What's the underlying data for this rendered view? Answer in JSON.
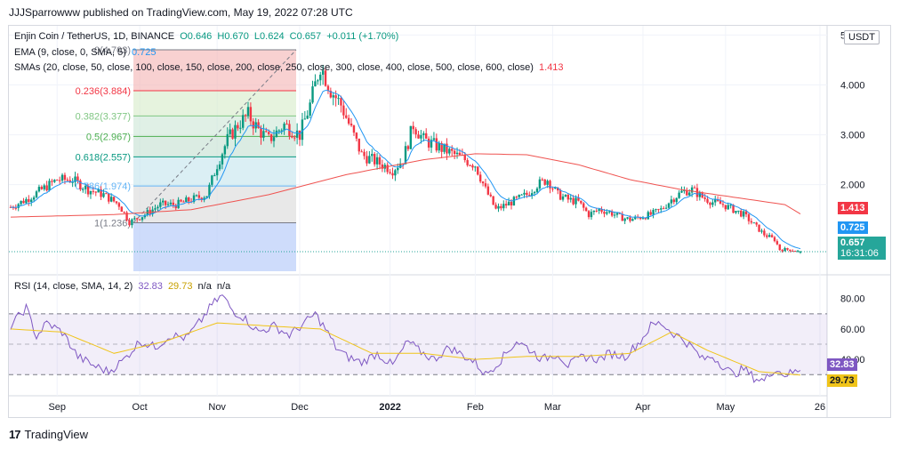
{
  "header": {
    "published": "JJJSparrowww published on TradingView.com, May 19, 2022 07:28 UTC"
  },
  "legend": {
    "symbol": "Enjin Coin / TetherUS, 1D, BINANCE",
    "o": "O0.646",
    "h": "H0.670",
    "l": "L0.624",
    "c": "C0.657",
    "chg": "+0.011 (+1.70%)",
    "ema_label": "EMA (9, close, 0, SMA, 5)",
    "ema_value": "0.725",
    "sma_label": "SMAs (20, close, 50, close, 100, close, 150, close, 200, close, 250, close, 300, close, 400, close, 500, close, 600, close)",
    "sma_value": "1.413",
    "rsi_label": "RSI (14, close, SMA, 14, 2)",
    "rsi_value": "32.83",
    "rsi_sma_value": "29.73",
    "na1": "n/a",
    "na2": "n/a"
  },
  "currency": "USDT",
  "price_tags": {
    "sma": "1.413",
    "ema": "0.725",
    "last": "0.657",
    "countdown": "16:31:06",
    "rsi": "32.83",
    "rsi_sma": "29.73"
  },
  "colors": {
    "up": "#089981",
    "down": "#f23645",
    "ema": "#2196f3",
    "sma": "#ef5350",
    "rsi": "#7e57c2",
    "rsi_sma": "#f0c419"
  },
  "fib_labels": [
    "0(4.703)",
    "0.236(3.884)",
    "0.382(3.377)",
    "0.5(2.967)",
    "0.618(2.557)",
    "0.786(1.974)",
    "1(1.236)"
  ],
  "chart_data": [
    {
      "type": "candlestick",
      "y_axis_ticks": [
        "5",
        "4.000",
        "3.000",
        "2.000"
      ],
      "x_axis_ticks": [
        "Sep",
        "Oct",
        "Nov",
        "Dec",
        "2022",
        "Feb",
        "Mar",
        "Apr",
        "May",
        "26"
      ],
      "series": [
        {
          "name": "EMA (9, close, 0, SMA, 5)",
          "last": 0.725
        },
        {
          "name": "SMAs (20, close, 50, close, 100, close, 150, close, 200, close, 250, close, 300, close, 400, close, 500, close, 600, close)",
          "last": 1.413
        }
      ],
      "fib_levels": [
        {
          "ratio": 0,
          "price": 4.703
        },
        {
          "ratio": 0.236,
          "price": 3.884
        },
        {
          "ratio": 0.382,
          "price": 3.377
        },
        {
          "ratio": 0.5,
          "price": 2.967
        },
        {
          "ratio": 0.618,
          "price": 2.557
        },
        {
          "ratio": 0.786,
          "price": 1.974
        },
        {
          "ratio": 1,
          "price": 1.236
        }
      ],
      "last": {
        "open": 0.646,
        "high": 0.67,
        "low": 0.624,
        "close": 0.657
      },
      "path": [
        [
          0,
          1.55
        ],
        [
          6,
          1.7
        ],
        [
          12,
          1.9
        ],
        [
          18,
          2.1
        ],
        [
          24,
          2.1
        ],
        [
          30,
          1.9
        ],
        [
          36,
          1.8
        ],
        [
          42,
          1.6
        ],
        [
          46,
          1.25
        ],
        [
          52,
          1.4
        ],
        [
          58,
          1.6
        ],
        [
          64,
          1.6
        ],
        [
          70,
          1.7
        ],
        [
          76,
          1.8
        ],
        [
          80,
          2.4
        ],
        [
          84,
          2.9
        ],
        [
          88,
          3.2
        ],
        [
          92,
          3.4
        ],
        [
          96,
          3.1
        ],
        [
          100,
          2.9
        ],
        [
          106,
          3.2
        ],
        [
          112,
          3.0
        ],
        [
          116,
          3.6
        ],
        [
          120,
          4.4
        ],
        [
          124,
          3.9
        ],
        [
          128,
          3.6
        ],
        [
          132,
          3.1
        ],
        [
          136,
          2.6
        ],
        [
          140,
          2.5
        ],
        [
          144,
          2.4
        ],
        [
          148,
          2.3
        ],
        [
          152,
          2.5
        ],
        [
          156,
          3.2
        ],
        [
          160,
          2.9
        ],
        [
          164,
          2.8
        ],
        [
          168,
          2.7
        ],
        [
          172,
          2.6
        ],
        [
          176,
          2.5
        ],
        [
          180,
          2.4
        ],
        [
          184,
          1.9
        ],
        [
          188,
          1.5
        ],
        [
          192,
          1.6
        ],
        [
          196,
          1.7
        ],
        [
          200,
          1.8
        ],
        [
          204,
          2.0
        ],
        [
          208,
          2.1
        ],
        [
          212,
          1.8
        ],
        [
          216,
          1.7
        ],
        [
          220,
          1.65
        ],
        [
          224,
          1.4
        ],
        [
          228,
          1.5
        ],
        [
          232,
          1.45
        ],
        [
          236,
          1.35
        ],
        [
          240,
          1.3
        ],
        [
          244,
          1.35
        ],
        [
          248,
          1.4
        ],
        [
          252,
          1.5
        ],
        [
          256,
          1.7
        ],
        [
          260,
          1.85
        ],
        [
          264,
          1.9
        ],
        [
          268,
          1.75
        ],
        [
          272,
          1.65
        ],
        [
          276,
          1.6
        ],
        [
          280,
          1.5
        ],
        [
          284,
          1.4
        ],
        [
          288,
          1.2
        ],
        [
          292,
          1.0
        ],
        [
          296,
          0.9
        ],
        [
          298,
          0.7
        ],
        [
          302,
          0.7
        ],
        [
          306,
          0.657
        ]
      ],
      "sma_path": [
        [
          0,
          1.35
        ],
        [
          40,
          1.4
        ],
        [
          70,
          1.5
        ],
        [
          100,
          1.8
        ],
        [
          130,
          2.2
        ],
        [
          160,
          2.5
        ],
        [
          180,
          2.62
        ],
        [
          200,
          2.6
        ],
        [
          220,
          2.4
        ],
        [
          240,
          2.1
        ],
        [
          260,
          1.9
        ],
        [
          280,
          1.75
        ],
        [
          300,
          1.6
        ],
        [
          306,
          1.413
        ]
      ]
    },
    {
      "type": "line",
      "y_axis_ticks": [
        "80.00",
        "60.00",
        "40.00"
      ],
      "series": [
        {
          "name": "RSI",
          "last": 32.83
        },
        {
          "name": "SMA",
          "last": 29.73
        }
      ],
      "bands": [
        70,
        50,
        30
      ],
      "rsi_path": [
        [
          0,
          62
        ],
        [
          6,
          74
        ],
        [
          10,
          55
        ],
        [
          14,
          64
        ],
        [
          20,
          58
        ],
        [
          26,
          42
        ],
        [
          32,
          36
        ],
        [
          38,
          32
        ],
        [
          44,
          40
        ],
        [
          50,
          52
        ],
        [
          56,
          48
        ],
        [
          62,
          56
        ],
        [
          68,
          54
        ],
        [
          74,
          66
        ],
        [
          78,
          76
        ],
        [
          82,
          82
        ],
        [
          86,
          72
        ],
        [
          90,
          68
        ],
        [
          96,
          58
        ],
        [
          102,
          62
        ],
        [
          108,
          56
        ],
        [
          114,
          64
        ],
        [
          118,
          70
        ],
        [
          122,
          60
        ],
        [
          126,
          48
        ],
        [
          130,
          42
        ],
        [
          136,
          38
        ],
        [
          142,
          44
        ],
        [
          148,
          36
        ],
        [
          154,
          52
        ],
        [
          158,
          46
        ],
        [
          164,
          40
        ],
        [
          170,
          48
        ],
        [
          176,
          42
        ],
        [
          180,
          38
        ],
        [
          184,
          30
        ],
        [
          190,
          40
        ],
        [
          196,
          52
        ],
        [
          200,
          48
        ],
        [
          206,
          40
        ],
        [
          212,
          44
        ],
        [
          216,
          36
        ],
        [
          222,
          42
        ],
        [
          228,
          40
        ],
        [
          232,
          44
        ],
        [
          238,
          42
        ],
        [
          244,
          52
        ],
        [
          248,
          62
        ],
        [
          252,
          64
        ],
        [
          256,
          58
        ],
        [
          260,
          54
        ],
        [
          264,
          48
        ],
        [
          268,
          40
        ],
        [
          272,
          42
        ],
        [
          276,
          36
        ],
        [
          280,
          30
        ],
        [
          284,
          34
        ],
        [
          288,
          28
        ],
        [
          292,
          26
        ],
        [
          296,
          34
        ],
        [
          300,
          30
        ],
        [
          306,
          32.83
        ]
      ],
      "sma_path": [
        [
          0,
          60
        ],
        [
          20,
          58
        ],
        [
          40,
          44
        ],
        [
          60,
          52
        ],
        [
          80,
          64
        ],
        [
          100,
          62
        ],
        [
          120,
          60
        ],
        [
          140,
          44
        ],
        [
          160,
          44
        ],
        [
          180,
          40
        ],
        [
          200,
          42
        ],
        [
          220,
          42
        ],
        [
          240,
          44
        ],
        [
          256,
          58
        ],
        [
          270,
          46
        ],
        [
          290,
          32
        ],
        [
          306,
          29.73
        ]
      ]
    }
  ]
}
